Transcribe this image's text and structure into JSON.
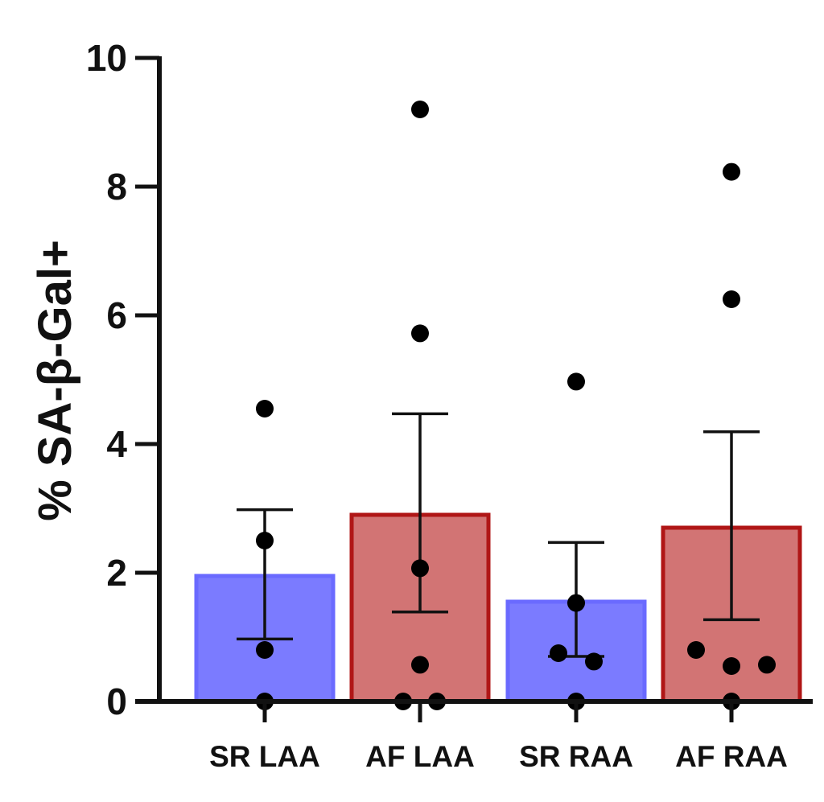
{
  "chart_data": {
    "type": "bar",
    "title": "",
    "xlabel": "",
    "ylabel": "% SA-β-Gal+",
    "ylim": [
      0,
      10
    ],
    "yticks": [
      "0",
      "2",
      "4",
      "6",
      "8",
      "10"
    ],
    "categories": [
      "SR LAA",
      "AF LAA",
      "SR RAA",
      "AF RAA"
    ],
    "values": [
      1.95,
      2.9,
      1.55,
      2.7
    ],
    "error_upper": [
      2.98,
      4.47,
      2.47,
      4.19
    ],
    "error_lower": [
      0.97,
      1.39,
      0.7,
      1.27
    ],
    "points": [
      [
        4.55,
        2.5,
        0.8,
        0.0
      ],
      [
        9.2,
        5.72,
        2.07,
        0.57,
        0.0,
        0.0
      ],
      [
        4.97,
        1.53,
        0.75,
        0.62,
        0.0
      ],
      [
        8.23,
        6.25,
        0.8,
        0.55,
        0.57,
        0.0
      ]
    ],
    "bar_fill_colors": [
      "#7b7bff",
      "#d27474",
      "#7b7bff",
      "#d27474"
    ],
    "bar_edge_colors": [
      "#6a6aff",
      "#b01616",
      "#6a6aff",
      "#b01616"
    ]
  }
}
